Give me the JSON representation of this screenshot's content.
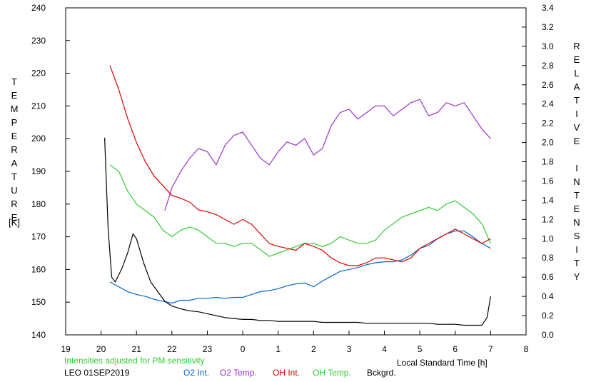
{
  "chart_data": {
    "type": "line",
    "station_label": "LEO 01SEP2019",
    "note": "Intensities adjusted for PM sensitivity",
    "xlabel": "Local Standard Time [h]",
    "ylabel_left_letters": [
      "T",
      "E",
      "M",
      "P",
      "E",
      "R",
      "A",
      "T",
      "U",
      "R",
      "E"
    ],
    "ylabel_left_unit": "[K]",
    "ylabel_right_letters": [
      "R",
      "E",
      "L",
      "A",
      "T",
      "I",
      "V",
      "E",
      "",
      "I",
      "N",
      "T",
      "E",
      "N",
      "S",
      "I",
      "T",
      "Y"
    ],
    "x_tick_labels": [
      "19",
      "20",
      "21",
      "22",
      "23",
      "0",
      "1",
      "2",
      "3",
      "4",
      "5",
      "6",
      "7",
      "8"
    ],
    "x_tick_values": [
      19,
      20,
      21,
      22,
      23,
      24,
      25,
      26,
      27,
      28,
      29,
      30,
      31,
      32
    ],
    "xlim": [
      19,
      32
    ],
    "ylim_left": [
      140,
      240
    ],
    "left_ticks": [
      140,
      150,
      160,
      170,
      180,
      190,
      200,
      210,
      220,
      230,
      240
    ],
    "ylim_right": [
      0.0,
      3.4
    ],
    "right_ticks": [
      "0.0",
      "0.2",
      "0.4",
      "0.6",
      "0.8",
      "1.0",
      "1.2",
      "1.4",
      "1.6",
      "1.8",
      "2.0",
      "2.2",
      "2.4",
      "2.6",
      "2.8",
      "3.0",
      "3.2",
      "3.4"
    ],
    "colors": {
      "o2_int": "#0066cc",
      "o2_temp": "#9933cc",
      "oh_int": "#dd0000",
      "oh_temp": "#33cc33",
      "bckgrd": "#000000",
      "note": "#33cc33"
    },
    "series": [
      {
        "name": "O2 Int.",
        "axis": "right",
        "x": [
          20.25,
          20.5,
          20.75,
          21,
          21.25,
          21.5,
          21.75,
          22,
          22.25,
          22.5,
          22.75,
          23,
          23.25,
          23.5,
          23.75,
          24,
          24.25,
          24.5,
          24.75,
          25,
          25.25,
          25.5,
          25.75,
          26,
          26.25,
          26.5,
          26.75,
          27,
          27.25,
          27.5,
          27.75,
          28,
          28.25,
          28.5,
          28.75,
          29,
          29.25,
          29.5,
          29.75,
          30,
          30.25,
          30.5,
          30.75,
          31
        ],
        "y": [
          0.55,
          0.5,
          0.45,
          0.42,
          0.4,
          0.37,
          0.35,
          0.33,
          0.36,
          0.36,
          0.38,
          0.38,
          0.39,
          0.38,
          0.39,
          0.39,
          0.42,
          0.45,
          0.46,
          0.48,
          0.51,
          0.53,
          0.54,
          0.5,
          0.56,
          0.61,
          0.66,
          0.68,
          0.7,
          0.73,
          0.75,
          0.76,
          0.76,
          0.78,
          0.83,
          0.9,
          0.93,
          1.0,
          1.05,
          1.08,
          1.08,
          1.02,
          0.95,
          0.9
        ]
      },
      {
        "name": "O2 Temp.",
        "axis": "left",
        "x": [
          21.8,
          22,
          22.25,
          22.5,
          22.75,
          23,
          23.25,
          23.5,
          23.75,
          24,
          24.25,
          24.5,
          24.75,
          25,
          25.25,
          25.5,
          25.75,
          26,
          26.25,
          26.5,
          26.75,
          27,
          27.25,
          27.5,
          27.75,
          28,
          28.25,
          28.5,
          28.75,
          29,
          29.25,
          29.5,
          29.75,
          30,
          30.25,
          30.5,
          30.75,
          31
        ],
        "y": [
          178,
          185,
          190,
          194,
          197,
          196,
          192,
          198,
          201,
          202,
          198,
          194,
          192,
          196,
          199,
          198,
          200,
          195,
          197,
          204,
          208,
          209,
          206,
          208,
          210,
          210,
          207,
          209,
          211,
          212,
          207,
          208,
          211,
          210,
          211,
          207,
          203,
          200
        ]
      },
      {
        "name": "OH Int.",
        "axis": "right",
        "x": [
          20.25,
          20.5,
          20.75,
          21,
          21.25,
          21.5,
          21.75,
          22,
          22.25,
          22.5,
          22.75,
          23,
          23.25,
          23.5,
          23.75,
          24,
          24.25,
          24.5,
          24.75,
          25,
          25.25,
          25.5,
          25.75,
          26,
          26.25,
          26.5,
          26.75,
          27,
          27.25,
          27.5,
          27.75,
          28,
          28.25,
          28.5,
          28.75,
          29,
          29.25,
          29.5,
          29.75,
          30,
          30.25,
          30.5,
          30.75,
          31
        ],
        "y": [
          2.8,
          2.55,
          2.25,
          2.0,
          1.8,
          1.65,
          1.55,
          1.45,
          1.42,
          1.38,
          1.3,
          1.28,
          1.25,
          1.2,
          1.15,
          1.2,
          1.15,
          1.05,
          0.95,
          0.92,
          0.9,
          0.88,
          0.95,
          0.92,
          0.88,
          0.8,
          0.75,
          0.72,
          0.72,
          0.75,
          0.8,
          0.8,
          0.78,
          0.76,
          0.8,
          0.9,
          0.95,
          1.0,
          1.05,
          1.1,
          1.05,
          1.0,
          0.95,
          1.0
        ]
      },
      {
        "name": "OH Temp.",
        "axis": "left",
        "x": [
          20.25,
          20.5,
          20.75,
          21,
          21.25,
          21.5,
          21.75,
          22,
          22.25,
          22.5,
          22.75,
          23,
          23.25,
          23.5,
          23.75,
          24,
          24.25,
          24.5,
          24.75,
          25,
          25.25,
          25.5,
          25.75,
          26,
          26.25,
          26.5,
          26.75,
          27,
          27.25,
          27.5,
          27.75,
          28,
          28.25,
          28.5,
          28.75,
          29,
          29.25,
          29.5,
          29.75,
          30,
          30.25,
          30.5,
          30.75,
          31
        ],
        "y": [
          192,
          190,
          184,
          180,
          178,
          176,
          172,
          170,
          172,
          173,
          172,
          170,
          168,
          168,
          167,
          168,
          168,
          166,
          164,
          165,
          166,
          167,
          168,
          168,
          167,
          168,
          170,
          169,
          168,
          168,
          169,
          172,
          174,
          176,
          177,
          178,
          179,
          178,
          180,
          181,
          179,
          177,
          174,
          168
        ]
      },
      {
        "name": "Bckgrd.",
        "axis": "right",
        "x": [
          20.1,
          20.2,
          20.3,
          20.4,
          20.6,
          20.75,
          20.9,
          21,
          21.2,
          21.4,
          21.6,
          21.8,
          22,
          22.25,
          22.5,
          22.75,
          23,
          23.25,
          23.5,
          23.75,
          24,
          24.25,
          24.5,
          24.75,
          25,
          25.25,
          25.5,
          25.75,
          26,
          26.25,
          26.5,
          26.75,
          27,
          27.25,
          27.5,
          27.75,
          28,
          28.25,
          28.5,
          28.75,
          29,
          29.25,
          29.5,
          29.75,
          30,
          30.25,
          30.5,
          30.75,
          30.9,
          31
        ],
        "y": [
          2.05,
          1.1,
          0.6,
          0.55,
          0.7,
          0.85,
          1.05,
          1.0,
          0.75,
          0.55,
          0.45,
          0.35,
          0.3,
          0.27,
          0.25,
          0.24,
          0.22,
          0.2,
          0.18,
          0.17,
          0.16,
          0.16,
          0.15,
          0.15,
          0.14,
          0.14,
          0.14,
          0.14,
          0.14,
          0.13,
          0.13,
          0.13,
          0.13,
          0.13,
          0.12,
          0.12,
          0.12,
          0.12,
          0.12,
          0.12,
          0.12,
          0.12,
          0.11,
          0.11,
          0.11,
          0.1,
          0.1,
          0.1,
          0.18,
          0.4
        ]
      }
    ]
  }
}
